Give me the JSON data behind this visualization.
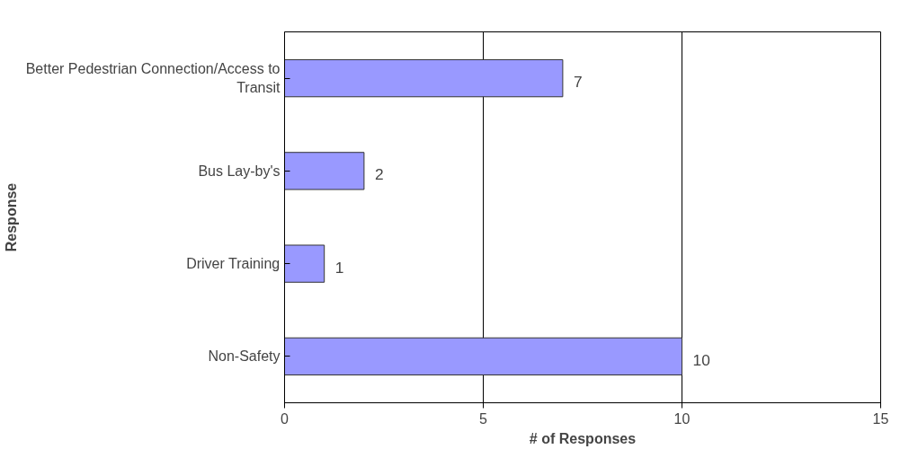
{
  "chart_data": {
    "type": "bar",
    "orientation": "horizontal",
    "xlabel": "# of Responses",
    "ylabel": "Response",
    "categories": [
      "Better Pedestrian Connection/Access to Transit",
      "Bus Lay-by's",
      "Driver Training",
      "Non-Safety"
    ],
    "values": [
      7,
      2,
      1,
      10
    ],
    "color": "#9999ff",
    "xlim": [
      0,
      15
    ],
    "xticks": [
      0,
      5,
      10,
      15
    ],
    "grid": "x",
    "data_labels": true
  }
}
